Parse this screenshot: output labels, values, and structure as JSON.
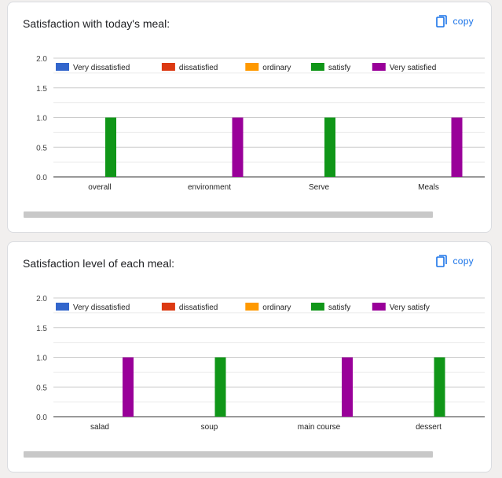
{
  "cards": [
    {
      "title": "Satisfaction with today's meal:",
      "copy_label": "copy",
      "copy_icon": "copy-icon"
    },
    {
      "title": "Satisfaction level of each meal:",
      "copy_label": "copy",
      "copy_icon": "copy-icon"
    }
  ],
  "colors": {
    "blue": "#3366cc",
    "red": "#dc3912",
    "orange": "#ff9900",
    "green": "#109618",
    "purple": "#990099",
    "link": "#1a73e8"
  },
  "chart_data": [
    {
      "type": "bar",
      "title": "",
      "xlabel": "",
      "ylabel": "",
      "ylim": [
        0,
        2
      ],
      "yticks": [
        "0.0",
        "0.5",
        "1.0",
        "1.5",
        "2.0"
      ],
      "grid": true,
      "legend_position": "top",
      "categories": [
        "overall",
        "environment",
        "Serve",
        "Meals"
      ],
      "series": [
        {
          "name": "Very dissatisfied",
          "color": "#3366cc",
          "values": [
            0,
            0,
            0,
            0
          ]
        },
        {
          "name": "dissatisfied",
          "color": "#dc3912",
          "values": [
            0,
            0,
            0,
            0
          ]
        },
        {
          "name": "ordinary",
          "color": "#ff9900",
          "values": [
            0,
            0,
            0,
            0
          ]
        },
        {
          "name": "satisfy",
          "color": "#109618",
          "values": [
            1,
            0,
            1,
            0
          ]
        },
        {
          "name": "Very satisfied",
          "color": "#990099",
          "values": [
            0,
            1,
            0,
            1
          ]
        }
      ]
    },
    {
      "type": "bar",
      "title": "",
      "xlabel": "",
      "ylabel": "",
      "ylim": [
        0,
        2
      ],
      "yticks": [
        "0.0",
        "0.5",
        "1.0",
        "1.5",
        "2.0"
      ],
      "grid": true,
      "legend_position": "top",
      "categories": [
        "salad",
        "soup",
        "main course",
        "dessert"
      ],
      "series": [
        {
          "name": "Very dissatisfied",
          "color": "#3366cc",
          "values": [
            0,
            0,
            0,
            0
          ]
        },
        {
          "name": "dissatisfied",
          "color": "#dc3912",
          "values": [
            0,
            0,
            0,
            0
          ]
        },
        {
          "name": "ordinary",
          "color": "#ff9900",
          "values": [
            0,
            0,
            0,
            0
          ]
        },
        {
          "name": "satisfy",
          "color": "#109618",
          "values": [
            0,
            1,
            0,
            1
          ]
        },
        {
          "name": "Very satisfy",
          "color": "#990099",
          "values": [
            1,
            0,
            1,
            0
          ]
        }
      ]
    }
  ]
}
